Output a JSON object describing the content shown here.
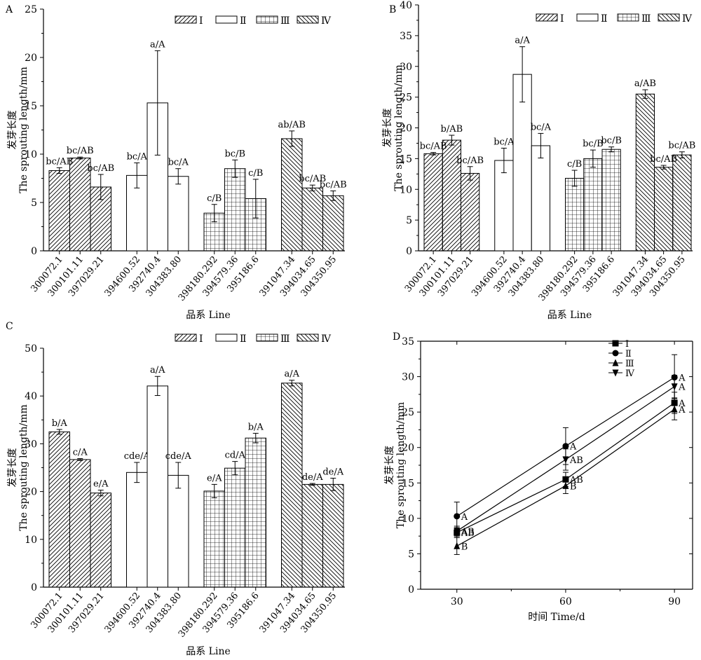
{
  "figure": {
    "ylabel_cn": "发芽长度",
    "ylabel_en": "The sprouting length/mm",
    "xlabel_bar": "品系 Line"
  },
  "chart_data": [
    {
      "panel": "A",
      "type": "bar",
      "ylim": [
        0,
        25
      ],
      "yticks": [
        0,
        5,
        10,
        15,
        20,
        25
      ],
      "legend": [
        "Ⅰ",
        "Ⅱ",
        "Ⅲ",
        "Ⅳ"
      ],
      "categories": [
        "300072.1",
        "300101.11",
        "397029.21",
        "394600.52",
        "392740.4",
        "304383.80",
        "398180.292",
        "394579.36",
        "395186.6",
        "391047.34",
        "394034.65",
        "304350.95"
      ],
      "groups": [
        1,
        1,
        1,
        2,
        2,
        2,
        3,
        3,
        3,
        4,
        4,
        4
      ],
      "values": [
        8.3,
        9.6,
        6.6,
        7.8,
        15.3,
        7.7,
        3.9,
        8.5,
        5.4,
        11.6,
        6.5,
        5.7
      ],
      "errors": [
        0.3,
        0.1,
        1.3,
        1.3,
        5.4,
        0.8,
        0.9,
        0.9,
        2.0,
        0.8,
        0.3,
        0.5
      ],
      "labels": [
        "bc/AB",
        "bc/AB",
        "bc/AB",
        "bc/A",
        "a/A",
        "bc/A",
        "c/B",
        "bc/B",
        "c/B",
        "ab/AB",
        "bc/AB",
        "bc/AB"
      ]
    },
    {
      "panel": "B",
      "type": "bar",
      "ylim": [
        0,
        40
      ],
      "yticks": [
        0,
        5,
        10,
        15,
        20,
        25,
        30,
        35,
        40
      ],
      "legend": [
        "Ⅰ",
        "Ⅱ",
        "Ⅲ",
        "Ⅳ"
      ],
      "categories": [
        "300072.1",
        "300101.11",
        "397029.21",
        "394600.52",
        "392740.4",
        "304383.80",
        "398180.292",
        "394579.36",
        "395186.6",
        "391047.34",
        "394034.65",
        "304350.95"
      ],
      "groups": [
        1,
        1,
        1,
        2,
        2,
        2,
        3,
        3,
        3,
        4,
        4,
        4
      ],
      "values": [
        15.8,
        18.0,
        12.6,
        14.7,
        28.7,
        17.1,
        11.8,
        15.0,
        16.5,
        25.5,
        13.6,
        15.6
      ],
      "errors": [
        0.2,
        0.8,
        1.1,
        2.0,
        4.5,
        2.0,
        1.3,
        1.4,
        0.4,
        0.7,
        0.3,
        0.5
      ],
      "labels": [
        "bc/AB",
        "b/AB",
        "bc/AB",
        "bc/A",
        "a/A",
        "bc/A",
        "c/B",
        "bc/B",
        "bc/B",
        "a/AB",
        "bc/AB",
        "bc/AB"
      ]
    },
    {
      "panel": "C",
      "type": "bar",
      "ylim": [
        0,
        50
      ],
      "yticks": [
        0,
        10,
        20,
        30,
        40,
        50
      ],
      "legend": [
        "Ⅰ",
        "Ⅱ",
        "Ⅲ",
        "Ⅳ"
      ],
      "categories": [
        "300072.1",
        "300101.11",
        "397029.21",
        "394600.52",
        "392740.4",
        "304383.80",
        "398180.292",
        "394579.36",
        "395186.6",
        "391047.34",
        "394034.65",
        "304350.95"
      ],
      "groups": [
        1,
        1,
        1,
        2,
        2,
        2,
        3,
        3,
        3,
        4,
        4,
        4
      ],
      "values": [
        32.5,
        26.7,
        19.7,
        24.0,
        42.1,
        23.4,
        20.1,
        24.9,
        31.2,
        42.7,
        21.5,
        21.5
      ],
      "errors": [
        0.5,
        0.2,
        0.6,
        2.1,
        2.0,
        2.7,
        1.4,
        1.4,
        1.0,
        0.6,
        0.2,
        1.3
      ],
      "labels": [
        "b/A",
        "c/A",
        "e/A",
        "cde/A",
        "a/A",
        "cde/A",
        "e/A",
        "cd/A",
        "b/A",
        "a/A",
        "de/A",
        "de/A"
      ]
    },
    {
      "panel": "D",
      "type": "line",
      "xlabel": "时间 Time/d",
      "x": [
        30,
        60,
        90
      ],
      "xlim": [
        20,
        95
      ],
      "xticks": [
        30,
        60,
        90
      ],
      "ylim": [
        0,
        35
      ],
      "yticks": [
        0,
        5,
        10,
        15,
        20,
        25,
        30,
        35
      ],
      "series": [
        {
          "name": "Ⅰ",
          "marker": "square",
          "values": [
            8.0,
            15.5,
            26.3
          ],
          "errors": [
            0.7,
            1.0,
            1.5
          ],
          "labels": [
            "AB",
            "AB",
            "A"
          ]
        },
        {
          "name": "Ⅱ",
          "marker": "circle",
          "values": [
            10.3,
            20.2,
            29.9
          ],
          "errors": [
            2.0,
            2.6,
            3.2
          ],
          "labels": [
            "A",
            "A",
            "A"
          ]
        },
        {
          "name": "Ⅲ",
          "marker": "triangle",
          "values": [
            6.1,
            14.6,
            25.4
          ],
          "errors": [
            1.2,
            1.1,
            1.5
          ],
          "labels": [
            "B",
            "B",
            "A"
          ]
        },
        {
          "name": "Ⅳ",
          "marker": "tri-down",
          "values": [
            8.2,
            18.3,
            28.6
          ],
          "errors": [
            0.7,
            1.5,
            1.6
          ],
          "labels": [
            "AB",
            "AB",
            "A"
          ]
        }
      ]
    }
  ]
}
